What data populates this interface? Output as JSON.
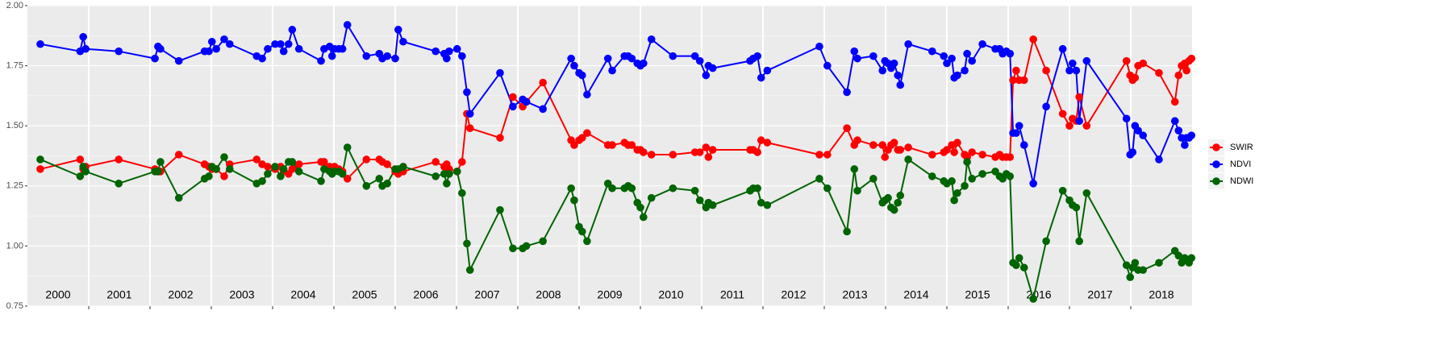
{
  "chart_data": {
    "type": "line",
    "x": [
      2000.21,
      2000.86,
      2000.91,
      2000.95,
      2001.49,
      2002.08,
      2002.13,
      2002.17,
      2002.47,
      2002.89,
      2002.96,
      2003.01,
      2003.08,
      2003.21,
      2003.3,
      2003.74,
      2003.83,
      2003.92,
      2004.04,
      2004.13,
      2004.18,
      2004.26,
      2004.32,
      2004.43,
      2004.79,
      2004.84,
      2004.93,
      2004.97,
      2005.01,
      2005.08,
      2005.14,
      2005.22,
      2005.53,
      2005.74,
      2005.79,
      2005.87,
      2006.0,
      2006.05,
      2006.13,
      2006.66,
      2006.8,
      2006.84,
      2006.88,
      2007.01,
      2007.09,
      2007.17,
      2007.22,
      2007.71,
      2007.92,
      2008.08,
      2008.14,
      2008.41,
      2008.87,
      2008.92,
      2009.0,
      2009.05,
      2009.13,
      2009.47,
      2009.54,
      2009.74,
      2009.8,
      2009.86,
      2009.95,
      2010.0,
      2010.05,
      2010.18,
      2010.53,
      2010.89,
      2010.97,
      2011.07,
      2011.11,
      2011.18,
      2011.79,
      2011.84,
      2011.91,
      2011.97,
      2012.07,
      2012.92,
      2013.05,
      2013.37,
      2013.49,
      2013.54,
      2013.8,
      2013.95,
      2013.99,
      2014.04,
      2014.09,
      2014.14,
      2014.2,
      2014.24,
      2014.37,
      2014.76,
      2014.95,
      2015.0,
      2015.08,
      2015.12,
      2015.17,
      2015.29,
      2015.33,
      2015.41,
      2015.58,
      2015.79,
      2015.86,
      2015.91,
      2015.97,
      2016.03,
      2016.08,
      2016.13,
      2016.18,
      2016.26,
      2016.41,
      2016.62,
      2016.89,
      2017.0,
      2017.05,
      2017.11,
      2017.16,
      2017.28,
      2017.93,
      2017.99,
      2018.03,
      2018.07,
      2018.12,
      2018.2,
      2018.46,
      2018.72,
      2018.78,
      2018.83,
      2018.88,
      2018.91,
      2018.95,
      2018.99
    ],
    "series": [
      {
        "name": "SWIR",
        "color": "#ff0000",
        "values": [
          1.32,
          1.36,
          1.32,
          1.33,
          1.36,
          1.32,
          1.31,
          1.31,
          1.38,
          1.34,
          1.33,
          1.32,
          1.32,
          1.29,
          1.34,
          1.36,
          1.34,
          1.33,
          1.32,
          1.33,
          1.31,
          1.3,
          1.32,
          1.34,
          1.35,
          1.35,
          1.33,
          1.31,
          1.33,
          1.32,
          1.31,
          1.28,
          1.36,
          1.36,
          1.35,
          1.34,
          1.31,
          1.3,
          1.31,
          1.35,
          1.33,
          1.34,
          1.32,
          1.31,
          1.35,
          1.55,
          1.49,
          1.45,
          1.62,
          1.58,
          1.6,
          1.68,
          1.44,
          1.42,
          1.44,
          1.45,
          1.47,
          1.42,
          1.42,
          1.43,
          1.42,
          1.42,
          1.4,
          1.4,
          1.39,
          1.38,
          1.38,
          1.39,
          1.39,
          1.41,
          1.37,
          1.4,
          1.4,
          1.4,
          1.39,
          1.44,
          1.43,
          1.38,
          1.38,
          1.49,
          1.42,
          1.44,
          1.42,
          1.42,
          1.37,
          1.4,
          1.42,
          1.43,
          1.4,
          1.4,
          1.41,
          1.38,
          1.39,
          1.4,
          1.42,
          1.39,
          1.43,
          1.38,
          1.37,
          1.39,
          1.38,
          1.37,
          1.38,
          1.37,
          1.37,
          1.37,
          1.69,
          1.73,
          1.69,
          1.69,
          1.86,
          1.73,
          1.55,
          1.5,
          1.53,
          1.52,
          1.62,
          1.5,
          1.77,
          1.71,
          1.69,
          1.7,
          1.75,
          1.76,
          1.72,
          1.6,
          1.71,
          1.75,
          1.76,
          1.73,
          1.77,
          1.78
        ]
      },
      {
        "name": "NDVI",
        "color": "#0000ff",
        "values": [
          1.84,
          1.81,
          1.87,
          1.82,
          1.81,
          1.78,
          1.83,
          1.82,
          1.77,
          1.81,
          1.81,
          1.85,
          1.82,
          1.86,
          1.84,
          1.79,
          1.78,
          1.82,
          1.84,
          1.84,
          1.81,
          1.84,
          1.9,
          1.82,
          1.77,
          1.82,
          1.83,
          1.79,
          1.82,
          1.82,
          1.82,
          1.92,
          1.79,
          1.8,
          1.78,
          1.79,
          1.78,
          1.9,
          1.85,
          1.81,
          1.8,
          1.78,
          1.81,
          1.82,
          1.79,
          1.64,
          1.55,
          1.72,
          1.58,
          1.61,
          1.6,
          1.57,
          1.78,
          1.75,
          1.72,
          1.71,
          1.63,
          1.78,
          1.73,
          1.79,
          1.79,
          1.78,
          1.76,
          1.75,
          1.76,
          1.86,
          1.79,
          1.79,
          1.77,
          1.71,
          1.75,
          1.74,
          1.77,
          1.78,
          1.79,
          1.7,
          1.73,
          1.83,
          1.75,
          1.64,
          1.81,
          1.78,
          1.79,
          1.73,
          1.77,
          1.76,
          1.74,
          1.76,
          1.71,
          1.67,
          1.84,
          1.81,
          1.79,
          1.76,
          1.78,
          1.7,
          1.71,
          1.73,
          1.8,
          1.77,
          1.84,
          1.82,
          1.82,
          1.8,
          1.81,
          1.8,
          1.47,
          1.47,
          1.5,
          1.42,
          1.26,
          1.58,
          1.82,
          1.73,
          1.76,
          1.73,
          1.52,
          1.77,
          1.53,
          1.38,
          1.39,
          1.5,
          1.48,
          1.46,
          1.36,
          1.52,
          1.48,
          1.45,
          1.42,
          1.45,
          1.45,
          1.46
        ]
      },
      {
        "name": "NDWI",
        "color": "#006400",
        "values": [
          1.36,
          1.29,
          1.33,
          1.31,
          1.26,
          1.31,
          1.31,
          1.35,
          1.2,
          1.28,
          1.29,
          1.33,
          1.32,
          1.37,
          1.32,
          1.26,
          1.27,
          1.3,
          1.33,
          1.29,
          1.32,
          1.35,
          1.35,
          1.31,
          1.27,
          1.32,
          1.31,
          1.3,
          1.31,
          1.31,
          1.3,
          1.41,
          1.25,
          1.28,
          1.25,
          1.26,
          1.32,
          1.32,
          1.33,
          1.29,
          1.3,
          1.26,
          1.3,
          1.31,
          1.22,
          1.01,
          0.9,
          1.15,
          0.99,
          0.99,
          1.0,
          1.02,
          1.24,
          1.19,
          1.08,
          1.06,
          1.02,
          1.26,
          1.24,
          1.24,
          1.25,
          1.24,
          1.18,
          1.16,
          1.12,
          1.2,
          1.24,
          1.23,
          1.19,
          1.16,
          1.18,
          1.17,
          1.23,
          1.24,
          1.24,
          1.18,
          1.17,
          1.28,
          1.24,
          1.06,
          1.32,
          1.23,
          1.28,
          1.18,
          1.19,
          1.2,
          1.16,
          1.15,
          1.18,
          1.21,
          1.36,
          1.29,
          1.27,
          1.26,
          1.27,
          1.19,
          1.22,
          1.25,
          1.35,
          1.28,
          1.3,
          1.31,
          1.29,
          1.28,
          1.3,
          1.29,
          0.93,
          0.92,
          0.95,
          0.91,
          0.78,
          1.02,
          1.23,
          1.19,
          1.17,
          1.16,
          1.02,
          1.22,
          0.92,
          0.87,
          0.91,
          0.93,
          0.9,
          0.9,
          0.93,
          0.98,
          0.96,
          0.93,
          0.95,
          0.94,
          0.93,
          0.95
        ]
      }
    ],
    "xlim": [
      2000,
      2019
    ],
    "xticks": [
      {
        "value": 2000.5,
        "label": "2000"
      },
      {
        "value": 2001.5,
        "label": "2001"
      },
      {
        "value": 2002.5,
        "label": "2002"
      },
      {
        "value": 2003.5,
        "label": "2003"
      },
      {
        "value": 2004.5,
        "label": "2004"
      },
      {
        "value": 2005.5,
        "label": "2005"
      },
      {
        "value": 2006.5,
        "label": "2006"
      },
      {
        "value": 2007.5,
        "label": "2007"
      },
      {
        "value": 2008.5,
        "label": "2008"
      },
      {
        "value": 2009.5,
        "label": "2009"
      },
      {
        "value": 2010.5,
        "label": "2010"
      },
      {
        "value": 2011.5,
        "label": "2011"
      },
      {
        "value": 2012.5,
        "label": "2012"
      },
      {
        "value": 2013.5,
        "label": "2013"
      },
      {
        "value": 2014.5,
        "label": "2014"
      },
      {
        "value": 2015.5,
        "label": "2015"
      },
      {
        "value": 2016.5,
        "label": "2016"
      },
      {
        "value": 2017.5,
        "label": "2017"
      },
      {
        "value": 2018.5,
        "label": "2018"
      }
    ],
    "vlines": [
      2001,
      2002,
      2003,
      2004,
      2005,
      2006,
      2007,
      2008,
      2009,
      2010,
      2011,
      2012,
      2013,
      2014,
      2015,
      2016,
      2017,
      2018
    ],
    "ylim": [
      0.75,
      2.0
    ],
    "yticks": [
      {
        "value": 0.75,
        "label": "0.75"
      },
      {
        "value": 1.0,
        "label": "1.00"
      },
      {
        "value": 1.25,
        "label": "1.25"
      },
      {
        "value": 1.5,
        "label": "1.50"
      },
      {
        "value": 1.75,
        "label": "1.75"
      },
      {
        "value": 2.0,
        "label": "2.00"
      }
    ],
    "grid": true,
    "legend": "right"
  }
}
